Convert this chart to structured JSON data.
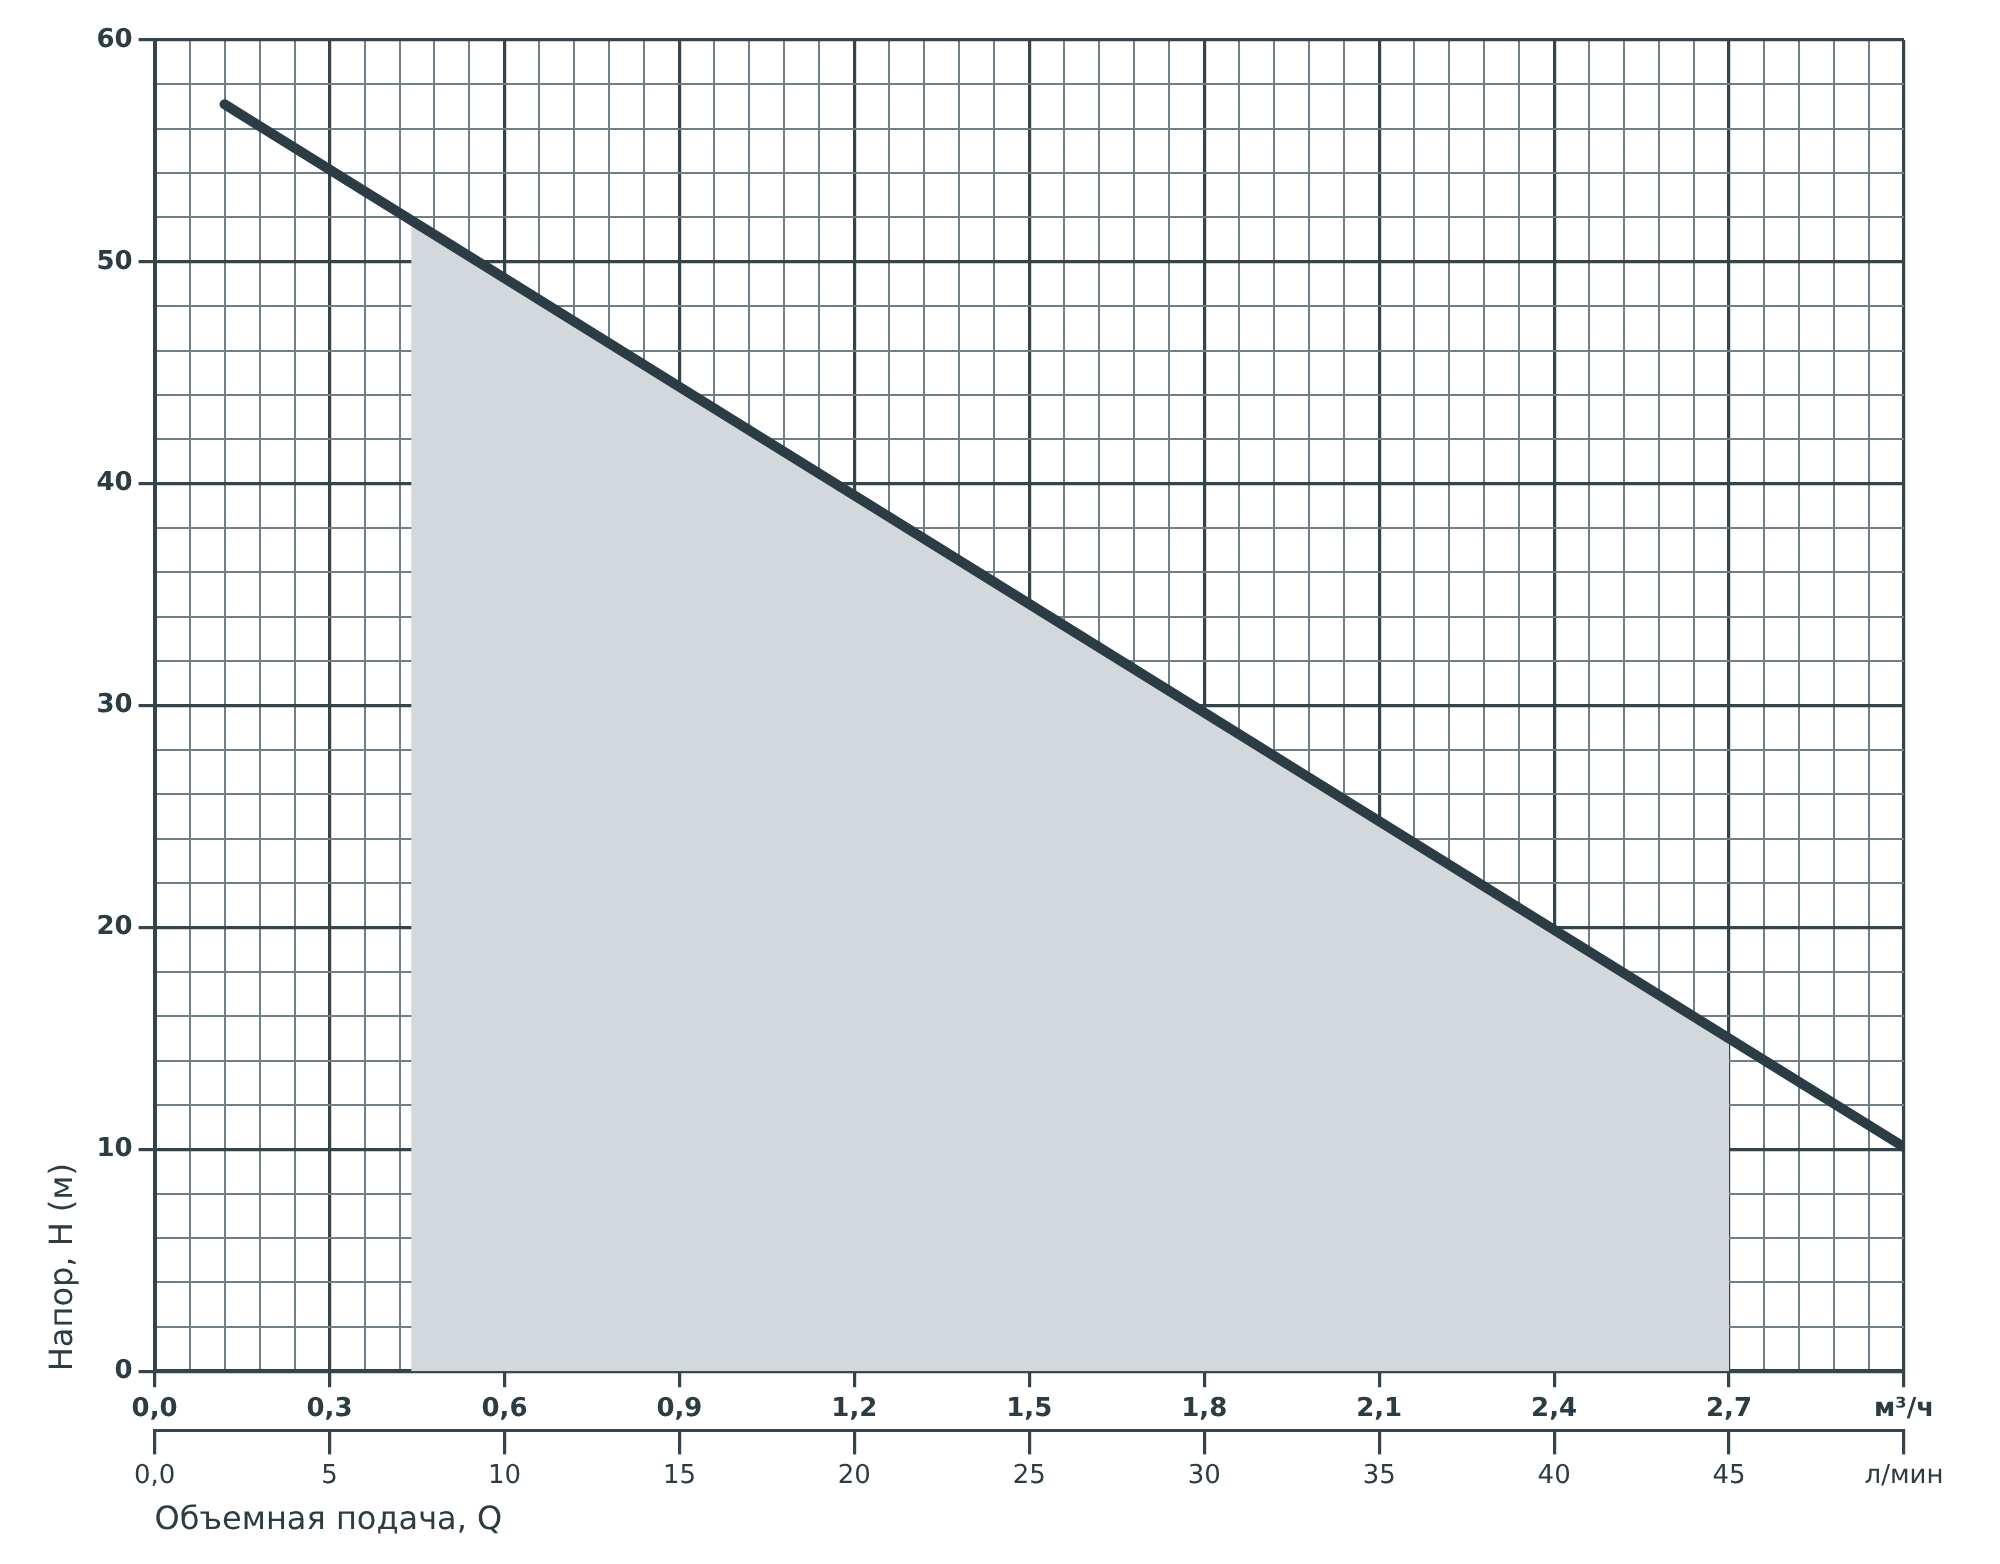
{
  "chart_data": {
    "type": "line",
    "ylabel": "Напор, H (м)",
    "x2label": "Объемная подача, Q",
    "xlim": [
      0,
      3.0
    ],
    "xticks": [
      {
        "value": 0,
        "label": "0,0"
      },
      {
        "value": 0.06,
        "label": null
      },
      {
        "value": 0.12,
        "label": null
      },
      {
        "value": 0.18,
        "label": null
      },
      {
        "value": 0.24,
        "label": null
      },
      {
        "value": 0.3,
        "label": "0,3"
      },
      {
        "value": 0.36,
        "label": null
      },
      {
        "value": 0.42,
        "label": null
      },
      {
        "value": 0.48,
        "label": null
      },
      {
        "value": 0.54,
        "label": null
      },
      {
        "value": 0.6,
        "label": "0,6"
      },
      {
        "value": 0.66,
        "label": null
      },
      {
        "value": 0.72,
        "label": null
      },
      {
        "value": 0.78,
        "label": null
      },
      {
        "value": 0.84,
        "label": null
      },
      {
        "value": 0.9,
        "label": "0,9"
      },
      {
        "value": 0.96,
        "label": null
      },
      {
        "value": 1.02,
        "label": null
      },
      {
        "value": 1.08,
        "label": null
      },
      {
        "value": 1.14,
        "label": null
      },
      {
        "value": 1.2,
        "label": "1,2"
      },
      {
        "value": 1.26,
        "label": null
      },
      {
        "value": 1.32,
        "label": null
      },
      {
        "value": 1.38,
        "label": null
      },
      {
        "value": 1.44,
        "label": null
      },
      {
        "value": 1.5,
        "label": "1,5"
      },
      {
        "value": 1.56,
        "label": null
      },
      {
        "value": 1.62,
        "label": null
      },
      {
        "value": 1.68,
        "label": null
      },
      {
        "value": 1.74,
        "label": null
      },
      {
        "value": 1.8,
        "label": "1,8"
      },
      {
        "value": 1.86,
        "label": null
      },
      {
        "value": 1.92,
        "label": null
      },
      {
        "value": 1.98,
        "label": null
      },
      {
        "value": 2.04,
        "label": null
      },
      {
        "value": 2.1,
        "label": "2,1"
      },
      {
        "value": 2.16,
        "label": null
      },
      {
        "value": 2.22,
        "label": null
      },
      {
        "value": 2.28,
        "label": null
      },
      {
        "value": 2.34,
        "label": null
      },
      {
        "value": 2.4,
        "label": "2,4"
      },
      {
        "value": 2.46,
        "label": null
      },
      {
        "value": 2.52,
        "label": null
      },
      {
        "value": 2.58,
        "label": null
      },
      {
        "value": 2.64,
        "label": null
      },
      {
        "value": 2.7,
        "label": "2,7"
      },
      {
        "value": 2.76,
        "label": null
      },
      {
        "value": 2.82,
        "label": null
      },
      {
        "value": 2.88,
        "label": null
      },
      {
        "value": 2.94,
        "label": null
      },
      {
        "value": 3.0,
        "label": "м³/ч"
      }
    ],
    "x2lim": [
      0,
      50
    ],
    "x2ticks": [
      {
        "value": 0,
        "label": "0,0"
      },
      5,
      10,
      15,
      20,
      25,
      30,
      35,
      40,
      45,
      {
        "value": 50,
        "label": "л/мин"
      }
    ],
    "ylim": [
      0,
      60
    ],
    "yticks": [
      0,
      {
        "value": 2,
        "label": null
      },
      {
        "value": 4,
        "label": null
      },
      {
        "value": 6,
        "label": null
      },
      {
        "value": 8,
        "label": null
      },
      10,
      {
        "value": 12,
        "label": null
      },
      {
        "value": 14,
        "label": null
      },
      {
        "value": 16,
        "label": null
      },
      {
        "value": 18,
        "label": null
      },
      20,
      {
        "value": 22,
        "label": null
      },
      {
        "value": 24,
        "label": null
      },
      {
        "value": 26,
        "label": null
      },
      {
        "value": 28,
        "label": null
      },
      30,
      {
        "value": 32,
        "label": null
      },
      {
        "value": 34,
        "label": null
      },
      {
        "value": 36,
        "label": null
      },
      {
        "value": 38,
        "label": null
      },
      40,
      {
        "value": 42,
        "label": null
      },
      {
        "value": 44,
        "label": null
      },
      {
        "value": 46,
        "label": null
      },
      {
        "value": 48,
        "label": null
      },
      50,
      {
        "value": 52,
        "label": null
      },
      {
        "value": 54,
        "label": null
      },
      {
        "value": 56,
        "label": null
      },
      {
        "value": 58,
        "label": null
      },
      60
    ],
    "grid": true,
    "legend": false,
    "series": [
      {
        "type": "area",
        "color": "#d3d8dc",
        "x": [
          0.44,
          2.7
        ],
        "values": [
          51.9,
          15.0
        ]
      },
      {
        "type": "line",
        "color": "#2b3c45",
        "x": [
          0.12,
          3.0
        ],
        "values": [
          57.1,
          10.1
        ]
      }
    ]
  }
}
